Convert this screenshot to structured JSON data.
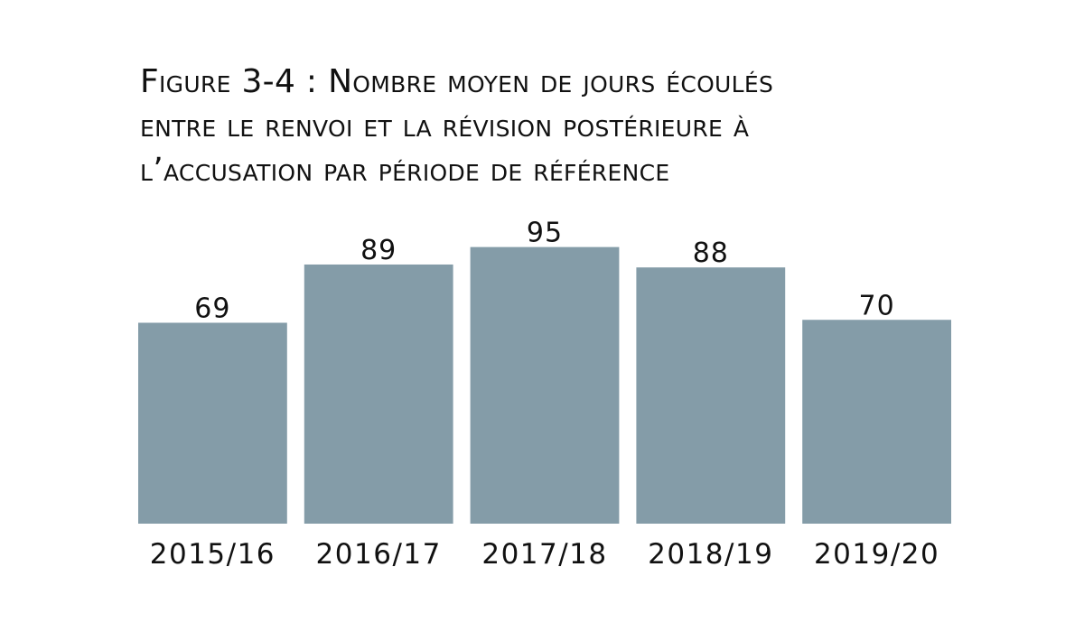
{
  "chart_data": {
    "type": "bar",
    "title": "Figure 3-4 : Nombre moyen de jours écoulés\nentre le renvoi et la révision postérieure à\nl’accusation par période de référence",
    "categories": [
      "2015/16",
      "2016/17",
      "2017/18",
      "2018/19",
      "2019/20"
    ],
    "values": [
      69,
      89,
      95,
      88,
      70
    ],
    "data_labels": [
      "69",
      "89",
      "95",
      "88",
      "70"
    ],
    "xlabel": "",
    "ylabel": "",
    "ylim": [
      0,
      100
    ],
    "grid": false,
    "legend": "none",
    "bar_color": "#849ca8"
  }
}
